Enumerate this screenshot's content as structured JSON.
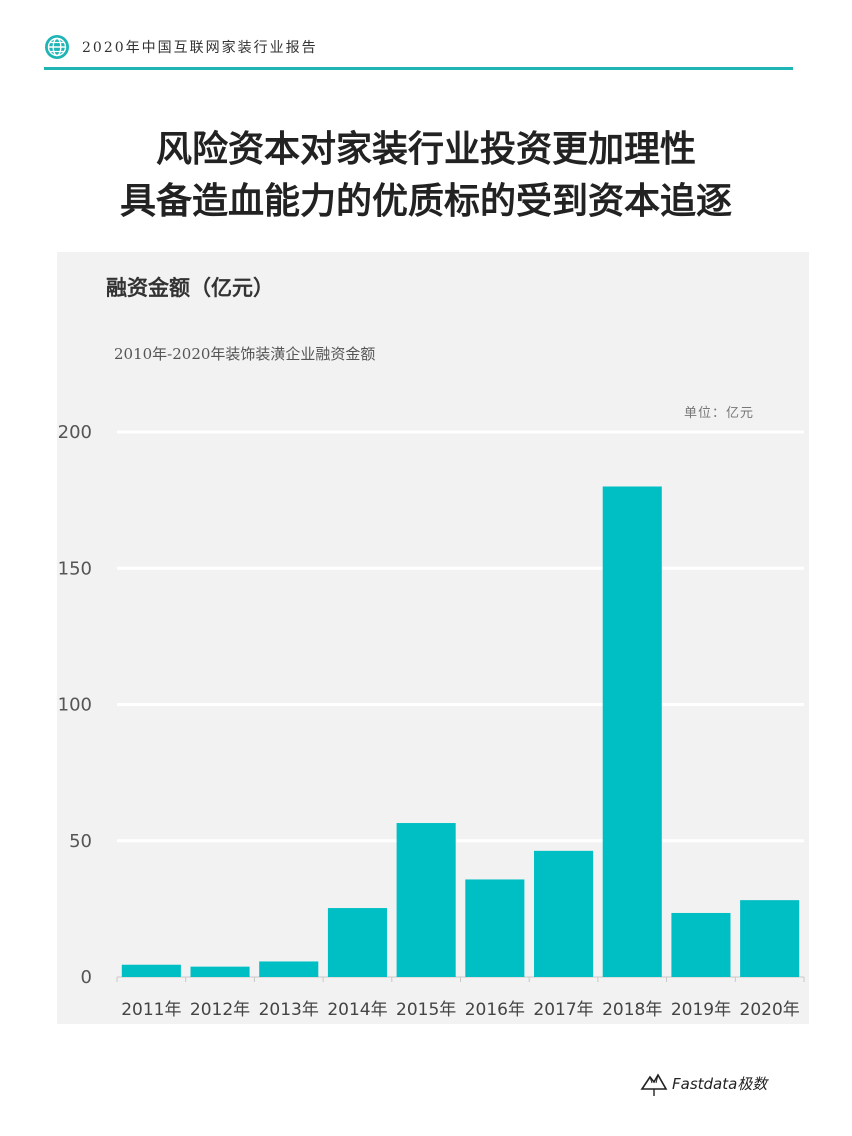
{
  "header": {
    "report_title": "2020年中国互联网家装行业报告"
  },
  "page": {
    "title_line1": "风险资本对家装行业投资更加理性",
    "title_line2": "具备造血能力的优质标的受到资本追逐"
  },
  "chart_header": {
    "heading": "融资金额（亿元）",
    "subtitle": "2010年-2020年装饰装潢企业融资金额",
    "unit": "单位：亿元"
  },
  "chart_data": {
    "type": "bar",
    "categories": [
      "2011年",
      "2012年",
      "2013年",
      "2014年",
      "2015年",
      "2016年",
      "2017年",
      "2018年",
      "2019年",
      "2020年"
    ],
    "values": [
      4.5,
      3.8,
      5.7,
      25.3,
      56.5,
      35.8,
      46.3,
      180,
      23.5,
      28.2
    ],
    "ylim": [
      0,
      200
    ],
    "yticks": [
      0,
      50,
      100,
      150,
      200
    ],
    "grid": true,
    "bar_color": "#00bfc4"
  },
  "footer": {
    "logo_text": "Fastdata极数"
  },
  "colors": {
    "accent": "#1fb5b5",
    "panel_bg": "#f2f2f2"
  }
}
